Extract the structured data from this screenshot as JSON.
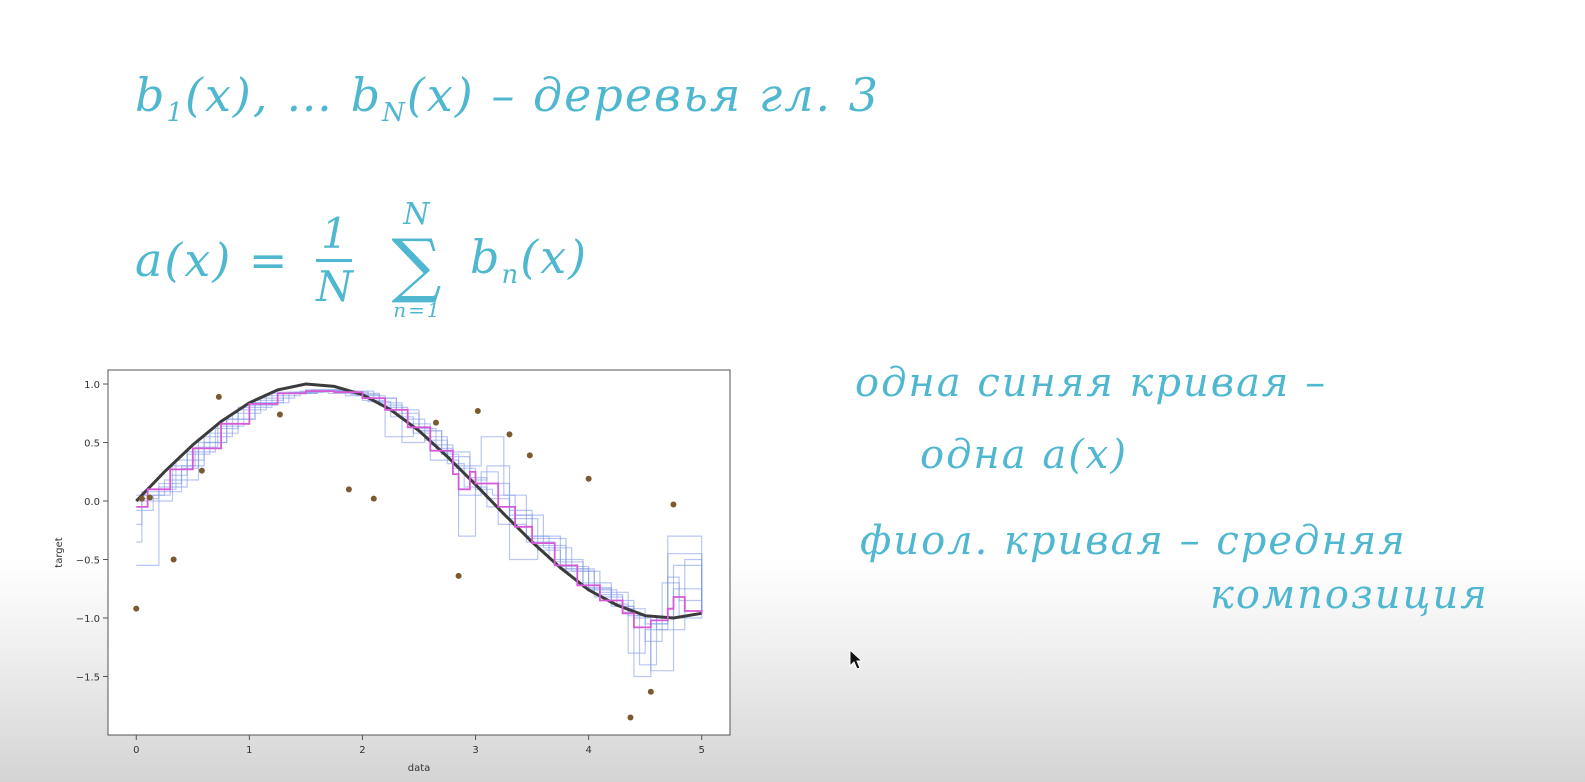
{
  "notes": {
    "line1": {
      "b1": "b",
      "b1_sub": "1",
      "arg1": "(x), …",
      "bn": "b",
      "bn_sub": "N",
      "argn": "(x)",
      "dash": " – ",
      "text": "деревья гл. 3"
    },
    "line2": {
      "lhs": "a(x) =",
      "frac_num": "1",
      "frac_den": "N",
      "sum_top": "N",
      "sum_sign": "∑",
      "sum_bot": "n=1",
      "term": "b",
      "term_sub": "n",
      "term_arg": "(x)"
    },
    "annotations": [
      "одна синяя кривая –",
      "одна a(x)",
      "фиол. кривая – средняя",
      "композиция"
    ]
  },
  "colors": {
    "ink": "#4fb8d0",
    "tree_curves": "#7d97e6",
    "mean_curve": "#d65ad8",
    "true_function": "#3b3b3b",
    "points": "#7a5a2e"
  },
  "icons": {
    "cursor": "mouse-pointer-icon"
  },
  "chart_data": {
    "type": "line",
    "xlabel": "data",
    "ylabel": "target",
    "xlim": [
      -0.25,
      5.25
    ],
    "ylim": [
      -2.0,
      1.12
    ],
    "xticks": [
      0,
      1,
      2,
      3,
      4,
      5
    ],
    "yticks": [
      1.0,
      0.5,
      0.0,
      -0.5,
      -1.0,
      -1.5
    ],
    "tick_labels_x": [
      "0",
      "1",
      "2",
      "3",
      "4",
      "5"
    ],
    "tick_labels_y": [
      "1.0",
      "0.5",
      "0.0",
      "−0.5",
      "−1.0",
      "−1.5"
    ],
    "grid": false,
    "series": [
      {
        "role": "true_function",
        "x": [
          0,
          0.25,
          0.5,
          0.75,
          1.0,
          1.25,
          1.5,
          1.75,
          2.0,
          2.25,
          2.5,
          2.75,
          3.0,
          3.25,
          3.5,
          3.75,
          4.0,
          4.25,
          4.5,
          4.75,
          5.0
        ],
        "y": [
          0.0,
          0.25,
          0.48,
          0.68,
          0.84,
          0.95,
          1.0,
          0.98,
          0.91,
          0.78,
          0.6,
          0.38,
          0.14,
          -0.11,
          -0.35,
          -0.57,
          -0.76,
          -0.89,
          -0.98,
          -1.0,
          -0.96
        ]
      },
      {
        "role": "mean_composition",
        "x": [
          0,
          0.1,
          0.3,
          0.5,
          0.75,
          1.0,
          1.25,
          1.5,
          1.75,
          2.0,
          2.2,
          2.4,
          2.6,
          2.8,
          2.85,
          2.95,
          3.0,
          3.2,
          3.35,
          3.5,
          3.7,
          3.9,
          4.1,
          4.3,
          4.4,
          4.55,
          4.7,
          4.75,
          4.85,
          5.0
        ],
        "y": [
          -0.05,
          0.1,
          0.27,
          0.45,
          0.66,
          0.83,
          0.92,
          0.94,
          0.93,
          0.88,
          0.78,
          0.63,
          0.43,
          0.23,
          0.1,
          0.25,
          0.15,
          -0.05,
          -0.22,
          -0.36,
          -0.55,
          -0.72,
          -0.85,
          -0.96,
          -1.08,
          -1.02,
          -0.92,
          -0.82,
          -0.94,
          -0.96
        ]
      },
      {
        "role": "tree",
        "x": [
          0,
          0.05,
          0.3,
          0.45,
          0.7,
          0.9,
          1.2,
          1.5,
          1.8,
          2.1,
          2.3,
          2.5,
          2.7,
          2.85,
          3.0,
          3.3,
          3.5,
          3.8,
          4.05,
          4.3,
          4.45,
          4.6,
          4.75,
          5.0
        ],
        "y": [
          -0.2,
          0.05,
          0.22,
          0.42,
          0.62,
          0.8,
          0.92,
          0.95,
          0.94,
          0.88,
          0.75,
          0.6,
          0.4,
          -0.3,
          0.15,
          -0.12,
          -0.32,
          -0.58,
          -0.8,
          -0.95,
          -1.4,
          -1.0,
          -0.55,
          -0.96
        ]
      },
      {
        "role": "tree",
        "x": [
          0,
          0.2,
          0.4,
          0.6,
          0.85,
          1.1,
          1.4,
          1.7,
          2.0,
          2.2,
          2.45,
          2.65,
          2.8,
          3.05,
          3.25,
          3.45,
          3.65,
          3.95,
          4.2,
          4.4,
          4.55,
          4.7,
          5.0
        ],
        "y": [
          -0.55,
          0.15,
          0.3,
          0.55,
          0.75,
          0.88,
          0.93,
          0.92,
          0.86,
          0.55,
          0.62,
          0.45,
          0.3,
          0.55,
          0.05,
          -0.3,
          -0.5,
          -0.74,
          -0.9,
          -1.5,
          -1.05,
          -0.45,
          -0.95
        ]
      },
      {
        "role": "tree",
        "x": [
          0,
          0.1,
          0.35,
          0.6,
          0.8,
          1.05,
          1.3,
          1.6,
          1.9,
          2.15,
          2.35,
          2.55,
          2.75,
          2.9,
          3.1,
          3.3,
          3.55,
          3.8,
          4.05,
          4.3,
          4.5,
          4.65,
          4.8,
          5.0
        ],
        "y": [
          0.0,
          0.1,
          0.35,
          0.5,
          0.7,
          0.86,
          0.92,
          0.94,
          0.92,
          0.84,
          0.7,
          0.52,
          0.32,
          0.12,
          -0.05,
          -0.5,
          -0.38,
          -0.6,
          -0.82,
          -0.92,
          -1.2,
          -0.7,
          -1.0,
          -0.96
        ]
      },
      {
        "role": "tree",
        "x": [
          0,
          0.15,
          0.25,
          0.55,
          0.75,
          0.95,
          1.25,
          1.55,
          1.85,
          2.05,
          2.25,
          2.45,
          2.6,
          2.85,
          3.05,
          3.2,
          3.45,
          3.7,
          3.95,
          4.2,
          4.35,
          4.5,
          4.7,
          5.0
        ],
        "y": [
          -0.08,
          0.05,
          0.18,
          0.45,
          0.64,
          0.82,
          0.93,
          0.95,
          0.9,
          0.85,
          0.72,
          0.58,
          0.35,
          0.05,
          0.25,
          -0.2,
          -0.35,
          -0.52,
          -0.7,
          -0.88,
          -1.3,
          -1.1,
          -0.3,
          -0.96
        ]
      },
      {
        "role": "tree",
        "x": [
          0,
          0.05,
          0.4,
          0.55,
          0.8,
          1.05,
          1.35,
          1.65,
          1.95,
          2.2,
          2.4,
          2.6,
          2.8,
          3.0,
          3.15,
          3.35,
          3.6,
          3.85,
          4.1,
          4.35,
          4.5,
          4.7,
          4.8,
          5.0
        ],
        "y": [
          -0.35,
          0.08,
          0.28,
          0.5,
          0.7,
          0.84,
          0.93,
          0.94,
          0.9,
          0.8,
          0.66,
          0.48,
          0.28,
          0.1,
          0.05,
          -0.12,
          -0.4,
          -0.6,
          -0.78,
          -0.98,
          -1.05,
          -0.65,
          -0.85,
          -0.96
        ]
      },
      {
        "role": "tree",
        "x": [
          0,
          0.2,
          0.45,
          0.65,
          0.9,
          1.15,
          1.45,
          1.75,
          2.05,
          2.3,
          2.5,
          2.7,
          2.95,
          3.1,
          3.3,
          3.55,
          3.75,
          4.0,
          4.25,
          4.4,
          4.55,
          4.75,
          5.0
        ],
        "y": [
          0.02,
          0.12,
          0.4,
          0.58,
          0.78,
          0.9,
          0.94,
          0.93,
          0.88,
          0.78,
          0.6,
          0.42,
          0.2,
          0.02,
          -0.15,
          -0.42,
          -0.58,
          -0.76,
          -0.9,
          -1.0,
          -1.45,
          -0.75,
          -0.96
        ]
      },
      {
        "role": "tree",
        "x": [
          0,
          0.12,
          0.32,
          0.52,
          0.72,
          1.0,
          1.3,
          1.6,
          1.9,
          2.15,
          2.35,
          2.55,
          2.75,
          2.95,
          3.1,
          3.3,
          3.5,
          3.75,
          4.0,
          4.2,
          4.4,
          4.6,
          4.85,
          5.0
        ],
        "y": [
          0.05,
          0.0,
          0.3,
          0.46,
          0.66,
          0.84,
          0.92,
          0.94,
          0.91,
          0.82,
          0.5,
          0.55,
          0.38,
          0.18,
          0.3,
          -0.08,
          -0.3,
          -0.56,
          -0.75,
          -0.85,
          -0.98,
          -1.1,
          -0.5,
          -0.96
        ]
      }
    ],
    "points": {
      "x": [
        0,
        0.05,
        0.12,
        0.33,
        0.58,
        0.73,
        1.27,
        1.88,
        2.1,
        2.65,
        2.85,
        3.02,
        3.3,
        3.48,
        4.0,
        4.37,
        4.55,
        4.75
      ],
      "y": [
        -0.92,
        0.02,
        0.03,
        -0.5,
        0.26,
        0.89,
        0.74,
        0.1,
        0.02,
        0.67,
        -0.64,
        0.77,
        0.57,
        0.39,
        0.19,
        -1.85,
        -1.63,
        -0.03
      ]
    }
  }
}
